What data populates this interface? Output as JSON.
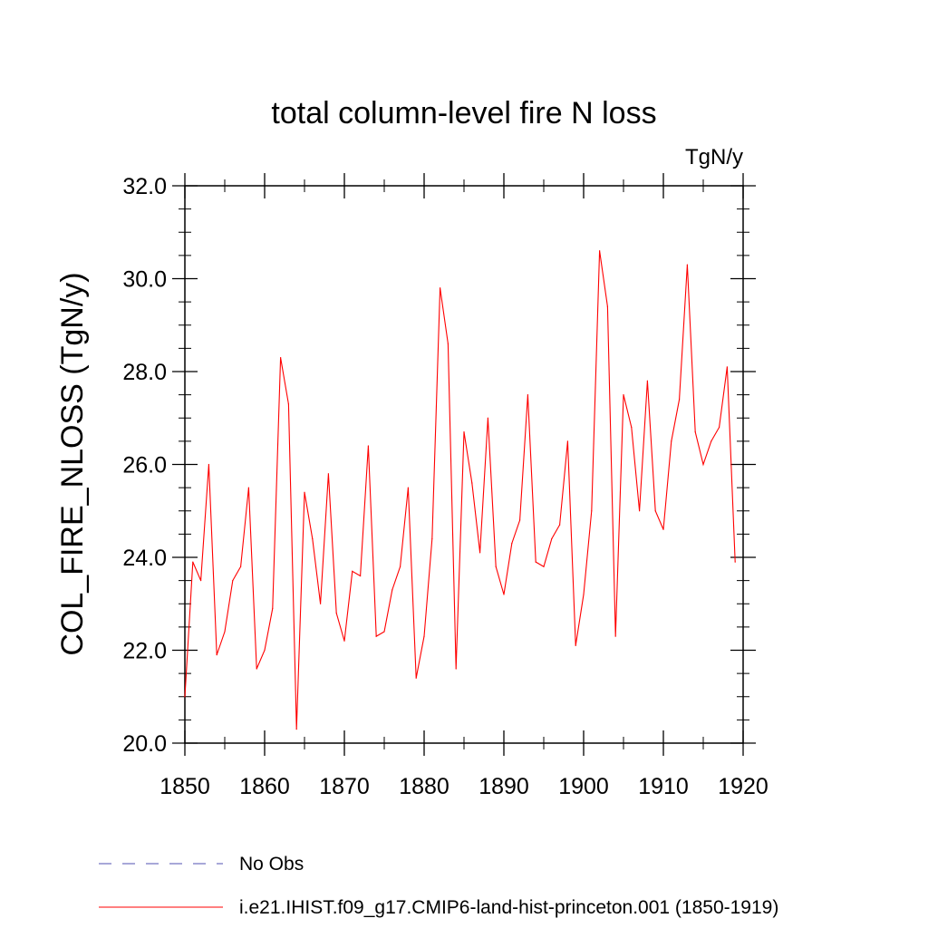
{
  "chart_data": {
    "type": "line",
    "title": "total column-level fire N loss",
    "units_label": "TgN/y",
    "ylabel": "COL_FIRE_NLOSS  (TgN/y)",
    "xlabel": "",
    "xlim": [
      1850,
      1920
    ],
    "ylim": [
      20.0,
      32.0
    ],
    "x_ticks": [
      1850,
      1860,
      1870,
      1880,
      1890,
      1900,
      1910,
      1920
    ],
    "x_tick_labels": [
      "1850",
      "1860",
      "1870",
      "1880",
      "1890",
      "1900",
      "1910",
      "1920"
    ],
    "y_ticks": [
      20,
      22,
      24,
      26,
      28,
      30,
      32
    ],
    "y_tick_labels": [
      "20.0",
      "22.0",
      "24.0",
      "26.0",
      "28.0",
      "30.0",
      "32.0"
    ],
    "grid": false,
    "legend_position": "bottom-left",
    "series": [
      {
        "name": "No Obs",
        "color": "#5050b0",
        "dash": "dashed",
        "values": []
      },
      {
        "name": "i.e21.IHIST.f09_g17.CMIP6-land-hist-princeton.001 (1850-1919)",
        "color": "#ff0000",
        "dash": "solid",
        "x": [
          1850,
          1851,
          1852,
          1853,
          1854,
          1855,
          1856,
          1857,
          1858,
          1859,
          1860,
          1861,
          1862,
          1863,
          1864,
          1865,
          1866,
          1867,
          1868,
          1869,
          1870,
          1871,
          1872,
          1873,
          1874,
          1875,
          1876,
          1877,
          1878,
          1879,
          1880,
          1881,
          1882,
          1883,
          1884,
          1885,
          1886,
          1887,
          1888,
          1889,
          1890,
          1891,
          1892,
          1893,
          1894,
          1895,
          1896,
          1897,
          1898,
          1899,
          1900,
          1901,
          1902,
          1903,
          1904,
          1905,
          1906,
          1907,
          1908,
          1909,
          1910,
          1911,
          1912,
          1913,
          1914,
          1915,
          1916,
          1917,
          1918,
          1919
        ],
        "values": [
          21.0,
          23.9,
          23.5,
          26.0,
          21.9,
          22.4,
          23.5,
          23.8,
          25.5,
          21.6,
          22.0,
          22.9,
          28.3,
          27.3,
          20.3,
          25.4,
          24.4,
          23.0,
          25.8,
          22.8,
          22.2,
          23.7,
          23.6,
          26.4,
          22.3,
          22.4,
          23.3,
          23.8,
          25.5,
          21.4,
          22.3,
          24.4,
          29.8,
          28.6,
          21.6,
          26.7,
          25.6,
          24.1,
          27.0,
          23.8,
          23.2,
          24.3,
          24.8,
          27.5,
          23.9,
          23.8,
          24.4,
          24.7,
          26.5,
          22.1,
          23.2,
          25.0,
          30.6,
          29.4,
          22.3,
          27.5,
          26.8,
          25.0,
          27.8,
          25.0,
          24.6,
          26.5,
          27.4,
          30.3,
          26.7,
          26.0,
          26.5,
          26.8,
          28.1,
          23.9
        ]
      }
    ]
  }
}
